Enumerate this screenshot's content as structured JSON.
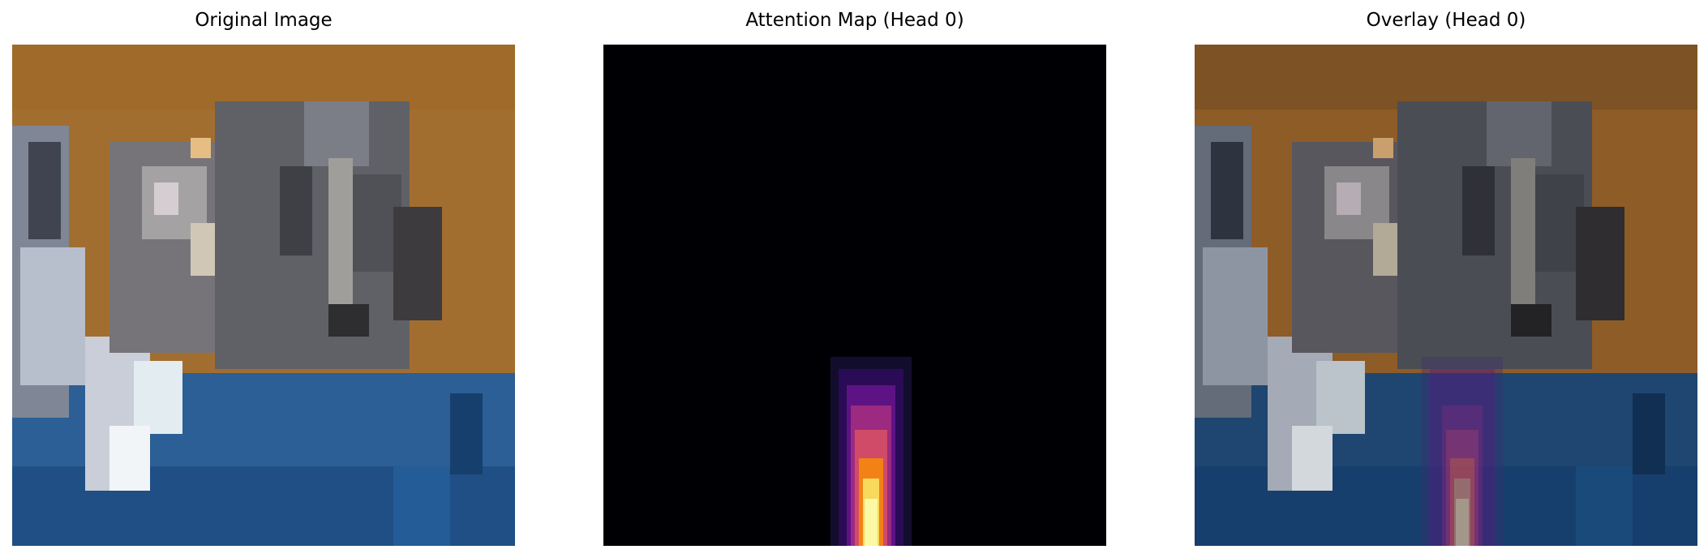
{
  "figure": {
    "titles": {
      "original": "Original Image",
      "attention": "Attention Map (Head 0)",
      "overlay": "Overlay (Head 0)"
    },
    "colors": {
      "table_orange": "#a26e2f",
      "table_orange_dark": "#8d5c27",
      "floor_blue": "#2b5f95",
      "floor_blue_dark": "#163f6d",
      "cat_gray": "#6d6d72",
      "cat_dark": "#34343b",
      "attention_background": "#000004",
      "attention_purple": "#6d1a86",
      "attention_magenta": "#b8377c",
      "attention_orange": "#f47f17",
      "attention_yellow": "#fbf8a6"
    },
    "icons": [
      "cat-image",
      "attention-heatmap"
    ]
  }
}
